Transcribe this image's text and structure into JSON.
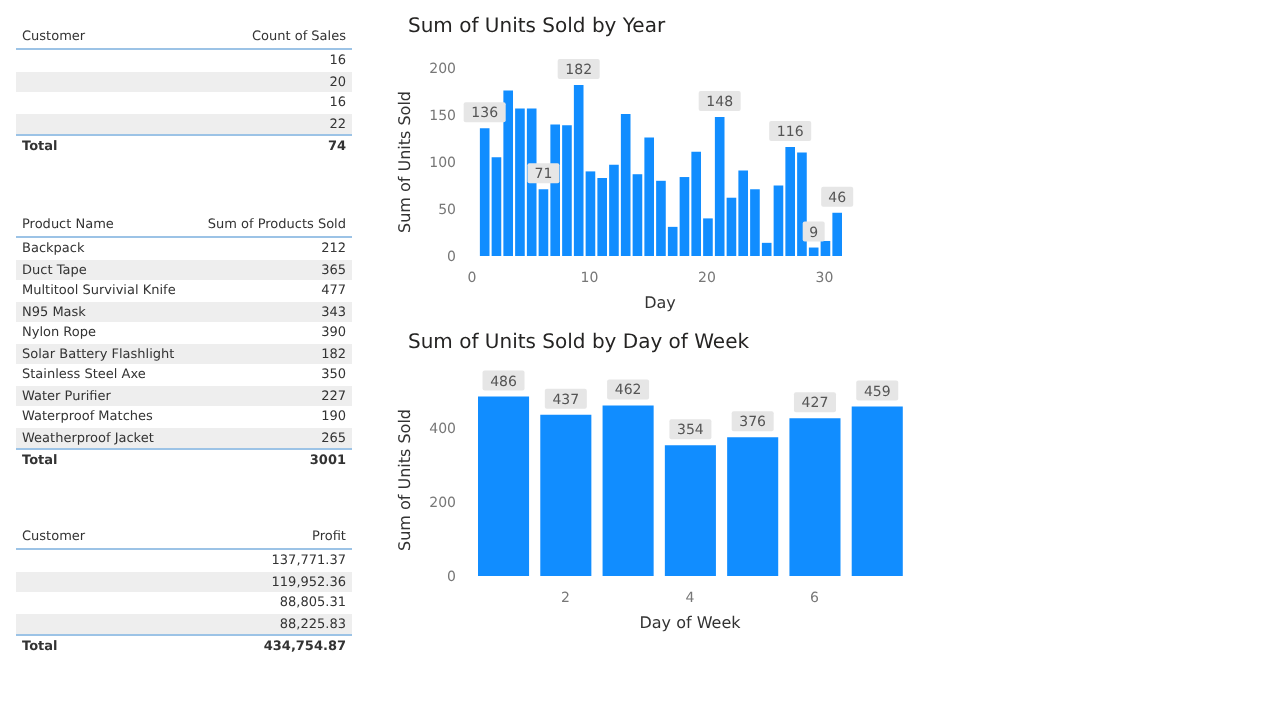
{
  "chart_data": [
    {
      "type": "other",
      "annotations": [
        "Customer",
        "Count of Sales"
      ],
      "categories": [
        null,
        null,
        null,
        null,
        "Total"
      ],
      "values": [
        16,
        20,
        16,
        22,
        74
      ],
      "data_labels": true
    },
    {
      "type": "bar",
      "title": "Sum of Units Sold by Year",
      "xlabel": "Day",
      "ylabel": "Sum of Units Sold",
      "x": [
        1,
        2,
        3,
        4,
        5,
        6,
        7,
        8,
        9,
        10,
        11,
        12,
        13,
        14,
        15,
        16,
        17,
        18,
        19,
        20,
        21,
        22,
        23,
        24,
        25,
        26,
        27,
        28,
        29,
        30,
        31
      ],
      "values": [
        136,
        105,
        176,
        157,
        157,
        71,
        140,
        139,
        182,
        90,
        83,
        97,
        151,
        87,
        126,
        80,
        31,
        84,
        111,
        40,
        148,
        62,
        91,
        71,
        14,
        75,
        116,
        110,
        9,
        16,
        46
      ],
      "value_labels": [
        "136",
        null,
        null,
        null,
        null,
        "71",
        null,
        null,
        "182",
        null,
        null,
        null,
        null,
        null,
        null,
        null,
        null,
        null,
        null,
        null,
        "148",
        null,
        null,
        null,
        null,
        null,
        "116",
        null,
        "9",
        null,
        "46"
      ],
      "color": "#118dff",
      "xlim": [
        0,
        32
      ],
      "xticks": [
        0,
        10,
        20,
        30
      ],
      "ylim": [
        0,
        200
      ],
      "yticks": [
        0,
        50,
        100,
        150,
        200
      ],
      "grid": false,
      "legend": false
    },
    {
      "type": "other",
      "annotations": [
        "Product Name",
        "Sum of Products Sold"
      ],
      "categories": [
        "Backpack",
        "Duct Tape",
        "Multitool Survivial Knife",
        "N95 Mask",
        "Nylon Rope",
        "Solar Battery Flashlight",
        "Stainless Steel Axe",
        "Water Purifier",
        "Waterproof Matches",
        "Weatherproof Jacket",
        "Total"
      ],
      "values": [
        212,
        365,
        477,
        343,
        390,
        182,
        350,
        227,
        190,
        265,
        3001
      ],
      "data_labels": true
    },
    {
      "type": "bar",
      "title": "Sum of Units Sold by Day of Week",
      "xlabel": "Day of Week",
      "ylabel": "Sum of Units Sold",
      "x": [
        1,
        2,
        3,
        4,
        5,
        6,
        7
      ],
      "values": [
        486,
        437,
        462,
        354,
        376,
        427,
        459
      ],
      "data_labels": true,
      "color": "#118dff",
      "xlim": [
        0.5,
        7.5
      ],
      "xticks": [
        2,
        4,
        6
      ],
      "ylim": [
        0,
        520
      ],
      "yticks": [
        0,
        200,
        400
      ],
      "grid": false,
      "legend": false
    },
    {
      "type": "other",
      "annotations": [
        "Customer",
        "Profit"
      ],
      "categories": [
        null,
        null,
        null,
        null,
        "Total"
      ],
      "values": [
        137771.37,
        119952.36,
        88805.31,
        88225.83,
        434754.87
      ],
      "value_labels": [
        "137,771.37",
        "119,952.36",
        "88,805.31",
        "88,225.83",
        "434,754.87"
      ]
    }
  ]
}
